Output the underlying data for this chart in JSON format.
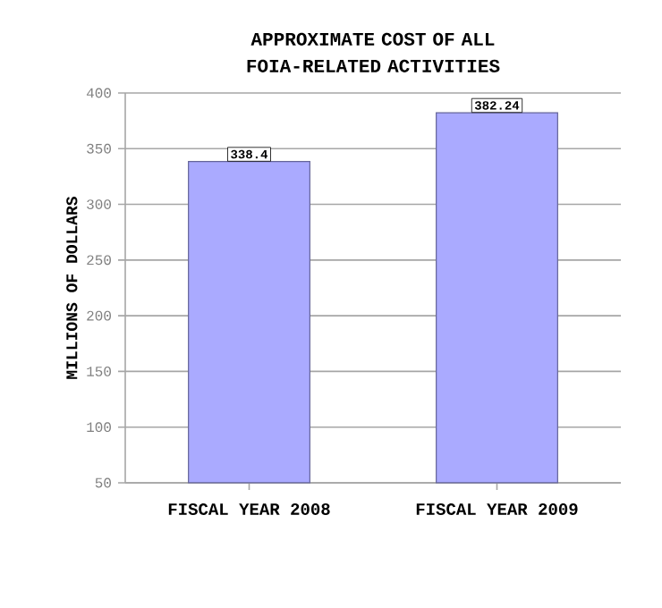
{
  "chart_data": {
    "type": "bar",
    "title": "APPROXIMATE COST OF ALL FOIA-RELATED ACTIVITIES",
    "ylabel": "MILLIONS OF DOLLARS",
    "categories": [
      "FISCAL YEAR 2008",
      "FISCAL YEAR 2009"
    ],
    "values": [
      338.4,
      382.24
    ],
    "value_labels": [
      "338.4",
      "382.24"
    ],
    "color": "#aaaaff",
    "ylim": [
      50,
      400
    ],
    "yticks": [
      50,
      100,
      150,
      200,
      250,
      300,
      350,
      400
    ],
    "grid": "y"
  }
}
